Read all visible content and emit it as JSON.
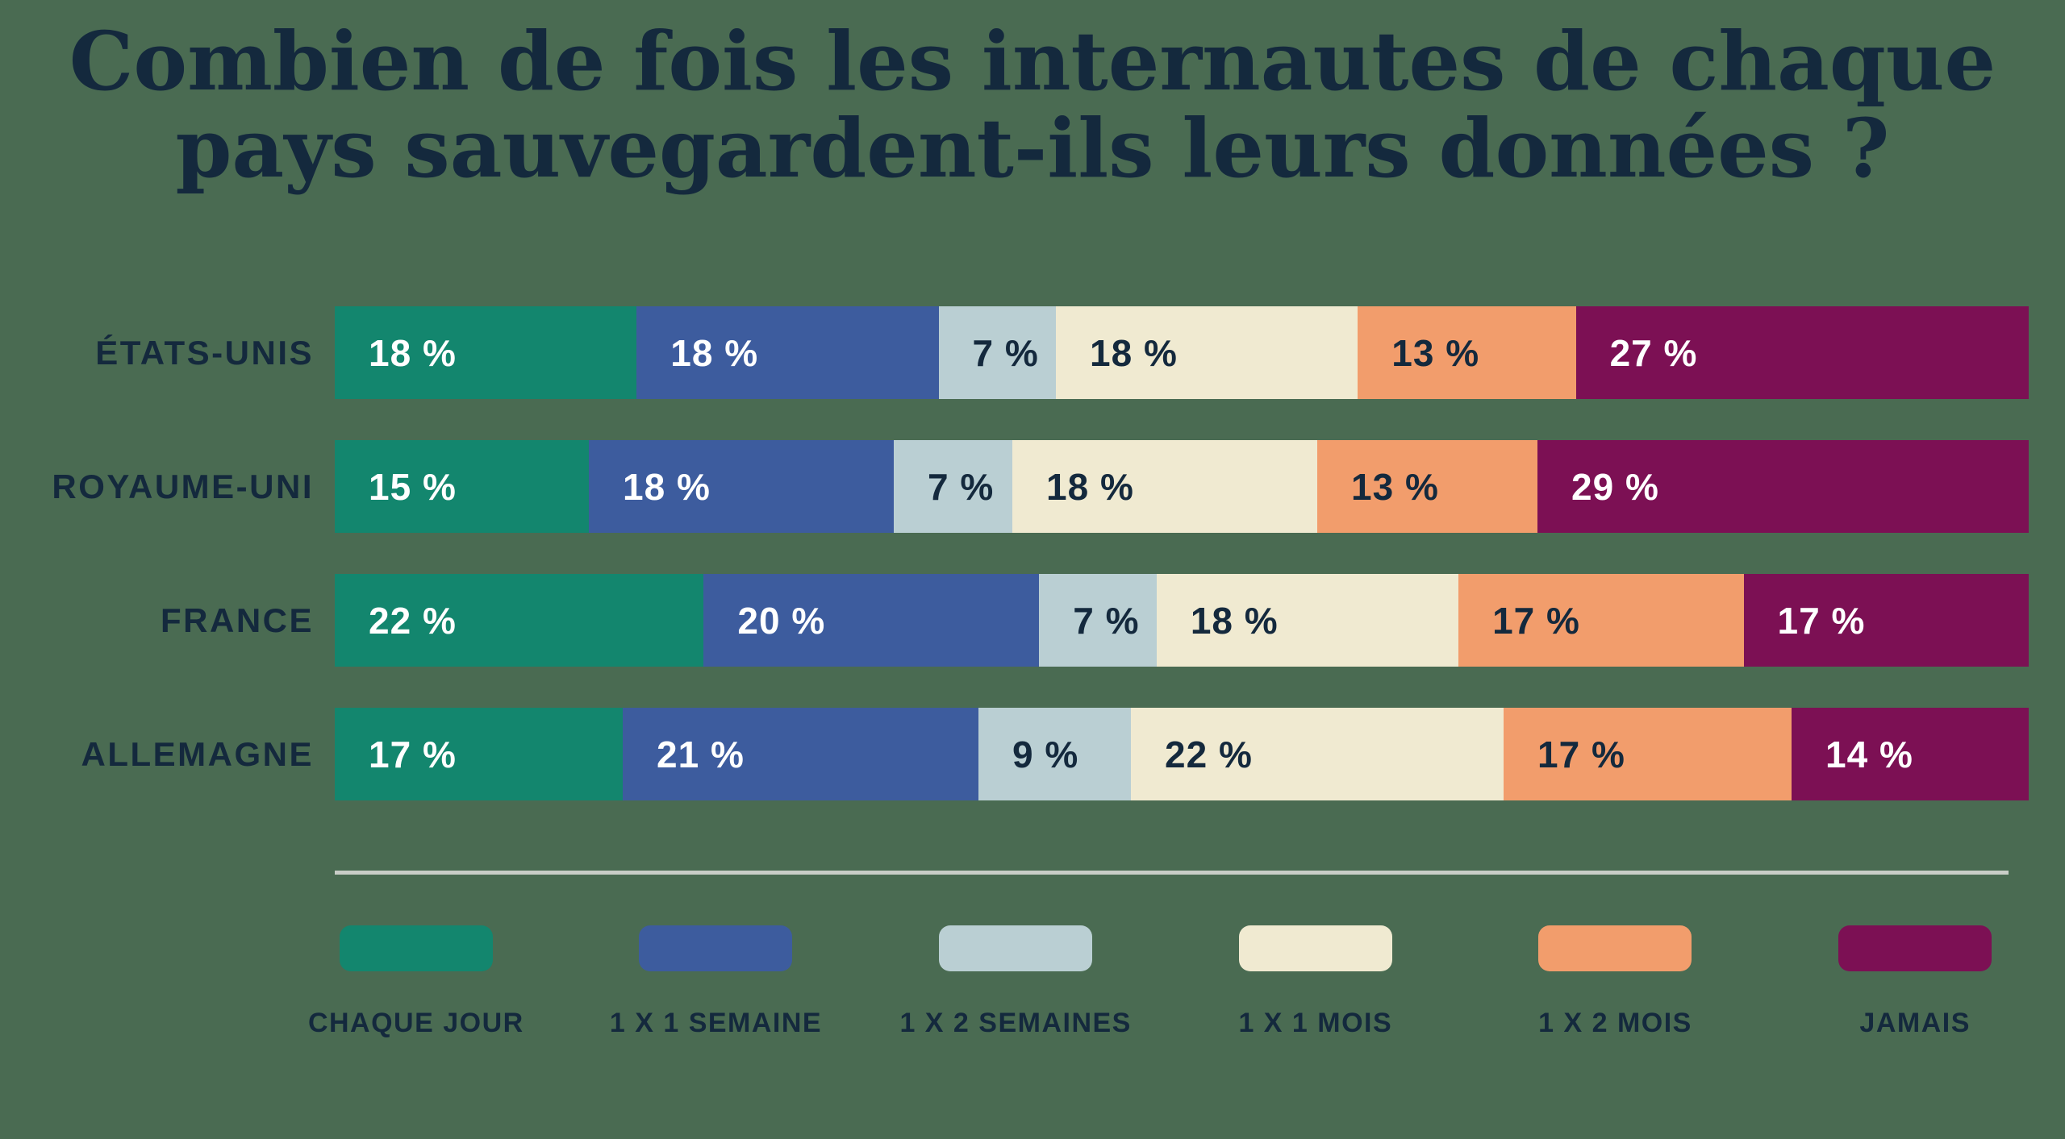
{
  "title": {
    "line1": "Combien de fois les internautes de chaque",
    "line2": "pays sauvegardent-ils leurs données ?",
    "full": "Combien de fois les internautes de chaque pays sauvegardent-ils leurs données ?"
  },
  "colors": {
    "background": "#4A6B52",
    "text": "#14293D",
    "divider": "#C9CDC7",
    "value_on_dark": "#FFFFFF"
  },
  "chart_data": {
    "type": "bar",
    "orientation": "horizontal-stacked",
    "title": "Combien de fois les internautes de chaque pays sauvegardent-ils leurs données ?",
    "categories": [
      "ÉTATS-UNIS",
      "ROYAUME-UNI",
      "FRANCE",
      "ALLEMAGNE"
    ],
    "series": [
      {
        "name": "CHAQUE JOUR",
        "color": "#13866E",
        "value_text_color": "#FFFFFF",
        "values": [
          18,
          15,
          22,
          17
        ]
      },
      {
        "name": "1 X 1 SEMAINE",
        "color": "#3D5C9E",
        "value_text_color": "#FFFFFF",
        "values": [
          18,
          18,
          20,
          21
        ]
      },
      {
        "name": "1 X 2 SEMAINES",
        "color": "#BACFD3",
        "value_text_color": "#14293D",
        "values": [
          7,
          7,
          7,
          9
        ]
      },
      {
        "name": "1 X 1 MOIS",
        "color": "#F0EAD1",
        "value_text_color": "#14293D",
        "values": [
          18,
          18,
          18,
          22
        ]
      },
      {
        "name": "1 X 2 MOIS",
        "color": "#F29D6C",
        "value_text_color": "#14293D",
        "values": [
          13,
          13,
          17,
          17
        ]
      },
      {
        "name": "JAMAIS",
        "color": "#7C1054",
        "value_text_color": "#FFFFFF",
        "values": [
          27,
          29,
          17,
          14
        ]
      }
    ],
    "value_suffix": " %",
    "legend_position": "bottom",
    "grid": false,
    "xlim": [
      0,
      100
    ]
  }
}
